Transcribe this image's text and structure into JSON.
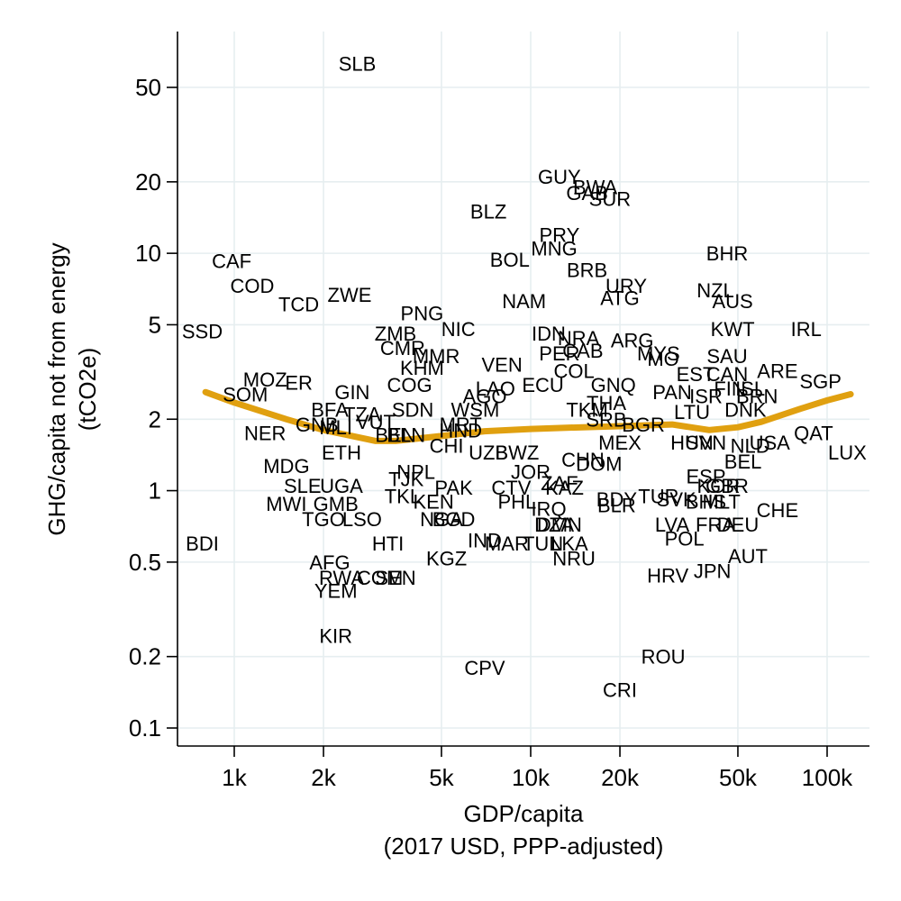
{
  "chart_data": {
    "type": "scatter",
    "xlabel": "GDP/capita",
    "xlabel_units": "(2017 USD, PPP-adjusted)",
    "ylabel": "GHG/capita not from energy",
    "ylabel_units": "(tCO2e)",
    "x_scale": "log",
    "y_scale": "log",
    "xlim": [
      700,
      130000
    ],
    "ylim": [
      0.085,
      78
    ],
    "grid": true,
    "line_color": "#e0a010",
    "x_ticks": [
      {
        "value": 1000,
        "label": "1k"
      },
      {
        "value": 2000,
        "label": "2k"
      },
      {
        "value": 5000,
        "label": "5k"
      },
      {
        "value": 10000,
        "label": "10k"
      },
      {
        "value": 20000,
        "label": "20k"
      },
      {
        "value": 50000,
        "label": "50k"
      },
      {
        "value": 100000,
        "label": "100k"
      }
    ],
    "y_ticks": [
      {
        "value": 0.1,
        "label": "0.1"
      },
      {
        "value": 0.2,
        "label": "0.2"
      },
      {
        "value": 0.5,
        "label": "0.5"
      },
      {
        "value": 1,
        "label": "1"
      },
      {
        "value": 2,
        "label": "2"
      },
      {
        "value": 5,
        "label": "5"
      },
      {
        "value": 10,
        "label": "10"
      },
      {
        "value": 20,
        "label": "20"
      },
      {
        "value": 50,
        "label": "50"
      }
    ],
    "trend": [
      {
        "x": 800,
        "y": 2.6
      },
      {
        "x": 1000,
        "y": 2.35
      },
      {
        "x": 1500,
        "y": 2.0
      },
      {
        "x": 2000,
        "y": 1.8
      },
      {
        "x": 2500,
        "y": 1.7
      },
      {
        "x": 3000,
        "y": 1.62
      },
      {
        "x": 3500,
        "y": 1.62
      },
      {
        "x": 5000,
        "y": 1.7
      },
      {
        "x": 7000,
        "y": 1.78
      },
      {
        "x": 10000,
        "y": 1.82
      },
      {
        "x": 15000,
        "y": 1.85
      },
      {
        "x": 20000,
        "y": 1.87
      },
      {
        "x": 30000,
        "y": 1.9
      },
      {
        "x": 40000,
        "y": 1.8
      },
      {
        "x": 50000,
        "y": 1.85
      },
      {
        "x": 60000,
        "y": 1.95
      },
      {
        "x": 80000,
        "y": 2.2
      },
      {
        "x": 100000,
        "y": 2.4
      },
      {
        "x": 120000,
        "y": 2.55
      }
    ],
    "points": [
      {
        "label": "SLB",
        "x": 2600,
        "y": 63
      },
      {
        "label": "GUY",
        "x": 12500,
        "y": 21
      },
      {
        "label": "BWA",
        "x": 16500,
        "y": 19
      },
      {
        "label": "GAB",
        "x": 15500,
        "y": 18
      },
      {
        "label": "SUR",
        "x": 18500,
        "y": 17
      },
      {
        "label": "BLZ",
        "x": 7200,
        "y": 15
      },
      {
        "label": "PRY",
        "x": 12500,
        "y": 12
      },
      {
        "label": "MNG",
        "x": 12000,
        "y": 10.5
      },
      {
        "label": "BOL",
        "x": 8500,
        "y": 9.4
      },
      {
        "label": "BRB",
        "x": 15500,
        "y": 8.5
      },
      {
        "label": "URY",
        "x": 21000,
        "y": 7.3
      },
      {
        "label": "ATG",
        "x": 20000,
        "y": 6.5
      },
      {
        "label": "NAM",
        "x": 9500,
        "y": 6.3
      },
      {
        "label": "BHR",
        "x": 46000,
        "y": 10
      },
      {
        "label": "NZL",
        "x": 42000,
        "y": 7
      },
      {
        "label": "AUS",
        "x": 48000,
        "y": 6.3
      },
      {
        "label": "KWT",
        "x": 48000,
        "y": 4.8
      },
      {
        "label": "IRL",
        "x": 85000,
        "y": 4.8
      },
      {
        "label": "SAU",
        "x": 46000,
        "y": 3.7
      },
      {
        "label": "ARE",
        "x": 68000,
        "y": 3.2
      },
      {
        "label": "SGP",
        "x": 95000,
        "y": 2.9
      },
      {
        "label": "CAN",
        "x": 46000,
        "y": 3.1
      },
      {
        "label": "EST",
        "x": 36000,
        "y": 3.1
      },
      {
        "label": "FIN",
        "x": 47000,
        "y": 2.7
      },
      {
        "label": "ISL",
        "x": 55000,
        "y": 2.7
      },
      {
        "label": "ISR",
        "x": 39000,
        "y": 2.5
      },
      {
        "label": "BRN",
        "x": 58000,
        "y": 2.5
      },
      {
        "label": "DNK",
        "x": 53000,
        "y": 2.2
      },
      {
        "label": "LTU",
        "x": 35000,
        "y": 2.15
      },
      {
        "label": "PAN",
        "x": 30000,
        "y": 2.6
      },
      {
        "label": "MYS",
        "x": 27000,
        "y": 3.8
      },
      {
        "label": "ARG",
        "x": 22000,
        "y": 4.3
      },
      {
        "label": "MO",
        "x": 28000,
        "y": 3.6
      },
      {
        "label": "IDN",
        "x": 11500,
        "y": 4.6
      },
      {
        "label": "NRA",
        "x": 14500,
        "y": 4.4
      },
      {
        "label": "PER",
        "x": 12500,
        "y": 3.8
      },
      {
        "label": "CAB",
        "x": 15000,
        "y": 3.9
      },
      {
        "label": "COL",
        "x": 14000,
        "y": 3.2
      },
      {
        "label": "GNQ",
        "x": 19000,
        "y": 2.8
      },
      {
        "label": "ECU",
        "x": 11000,
        "y": 2.8
      },
      {
        "label": "VEN",
        "x": 8000,
        "y": 3.4
      },
      {
        "label": "LAO",
        "x": 7600,
        "y": 2.7
      },
      {
        "label": "AGO",
        "x": 7000,
        "y": 2.5
      },
      {
        "label": "WSM",
        "x": 6500,
        "y": 2.2
      },
      {
        "label": "NIC",
        "x": 5700,
        "y": 4.8
      },
      {
        "label": "PNG",
        "x": 4300,
        "y": 5.6
      },
      {
        "label": "ZMB",
        "x": 3500,
        "y": 4.6
      },
      {
        "label": "CMR",
        "x": 3700,
        "y": 4.0
      },
      {
        "label": "MMR",
        "x": 4800,
        "y": 3.7
      },
      {
        "label": "KHM",
        "x": 4300,
        "y": 3.3
      },
      {
        "label": "COG",
        "x": 3900,
        "y": 2.8
      },
      {
        "label": "GIN",
        "x": 2500,
        "y": 2.6
      },
      {
        "label": "SDN",
        "x": 4000,
        "y": 2.2
      },
      {
        "label": "TZA",
        "x": 2700,
        "y": 2.1
      },
      {
        "label": "VUT",
        "x": 3000,
        "y": 1.95
      },
      {
        "label": "BFA",
        "x": 2100,
        "y": 2.2
      },
      {
        "label": "GNB",
        "x": 1900,
        "y": 1.9
      },
      {
        "label": "MLI",
        "x": 2200,
        "y": 1.85
      },
      {
        "label": "CAF",
        "x": 980,
        "y": 9.3
      },
      {
        "label": "COD",
        "x": 1150,
        "y": 7.3
      },
      {
        "label": "TCD",
        "x": 1650,
        "y": 6.1
      },
      {
        "label": "ZWE",
        "x": 2450,
        "y": 6.7
      },
      {
        "label": "SSD",
        "x": 780,
        "y": 4.7
      },
      {
        "label": "MOZ",
        "x": 1270,
        "y": 2.95
      },
      {
        "label": "ER",
        "x": 1650,
        "y": 2.85
      },
      {
        "label": "SOM",
        "x": 1090,
        "y": 2.55
      },
      {
        "label": "NER",
        "x": 1270,
        "y": 1.75
      },
      {
        "label": "MDG",
        "x": 1500,
        "y": 1.27
      },
      {
        "label": "ETH",
        "x": 2300,
        "y": 1.45
      },
      {
        "label": "SLE",
        "x": 1700,
        "y": 1.05
      },
      {
        "label": "UGA",
        "x": 2300,
        "y": 1.05
      },
      {
        "label": "MWI",
        "x": 1500,
        "y": 0.88
      },
      {
        "label": "GMB",
        "x": 2200,
        "y": 0.88
      },
      {
        "label": "TGO",
        "x": 2000,
        "y": 0.76
      },
      {
        "label": "LSO",
        "x": 2700,
        "y": 0.76
      },
      {
        "label": "BDI",
        "x": 780,
        "y": 0.6
      },
      {
        "label": "AFG",
        "x": 2100,
        "y": 0.5
      },
      {
        "label": "RWA",
        "x": 2300,
        "y": 0.43
      },
      {
        "label": "COM",
        "x": 3100,
        "y": 0.43
      },
      {
        "label": "SEN",
        "x": 3500,
        "y": 0.43
      },
      {
        "label": "YEM",
        "x": 2200,
        "y": 0.38
      },
      {
        "label": "KIR",
        "x": 2200,
        "y": 0.245
      },
      {
        "label": "HTI",
        "x": 3300,
        "y": 0.6
      },
      {
        "label": "KGZ",
        "x": 5200,
        "y": 0.52
      },
      {
        "label": "BEN",
        "x": 3500,
        "y": 1.72
      },
      {
        "label": "BLN",
        "x": 3800,
        "y": 1.72
      },
      {
        "label": "NPL",
        "x": 4100,
        "y": 1.2
      },
      {
        "label": "TJK",
        "x": 3800,
        "y": 1.12
      },
      {
        "label": "TKL",
        "x": 3700,
        "y": 0.95
      },
      {
        "label": "PAK",
        "x": 5500,
        "y": 1.03
      },
      {
        "label": "KEN",
        "x": 4700,
        "y": 0.9
      },
      {
        "label": "NGA",
        "x": 5000,
        "y": 0.76
      },
      {
        "label": "BGD",
        "x": 5500,
        "y": 0.76
      },
      {
        "label": "CHI",
        "x": 5200,
        "y": 1.55
      },
      {
        "label": "MRT",
        "x": 5800,
        "y": 1.9
      },
      {
        "label": "HND",
        "x": 5800,
        "y": 1.8
      },
      {
        "label": "UZB",
        "x": 7200,
        "y": 1.45
      },
      {
        "label": "BWZ",
        "x": 9000,
        "y": 1.45
      },
      {
        "label": "JOR",
        "x": 10000,
        "y": 1.2
      },
      {
        "label": "CTV",
        "x": 8600,
        "y": 1.03
      },
      {
        "label": "PHL",
        "x": 9000,
        "y": 0.9
      },
      {
        "label": "IND",
        "x": 7000,
        "y": 0.62
      },
      {
        "label": "MAR",
        "x": 8300,
        "y": 0.6
      },
      {
        "label": "TUN",
        "x": 11000,
        "y": 0.6
      },
      {
        "label": "LKA",
        "x": 13500,
        "y": 0.6
      },
      {
        "label": "NRU",
        "x": 14000,
        "y": 0.52
      },
      {
        "label": "DZA",
        "x": 12000,
        "y": 0.72
      },
      {
        "label": "DMN",
        "x": 12500,
        "y": 0.72
      },
      {
        "label": "IRQ",
        "x": 11500,
        "y": 0.84
      },
      {
        "label": "KAZ",
        "x": 13000,
        "y": 1.03
      },
      {
        "label": "ZAF",
        "x": 12500,
        "y": 1.08
      },
      {
        "label": "DOM",
        "x": 17000,
        "y": 1.3
      },
      {
        "label": "BDY",
        "x": 19500,
        "y": 0.92
      },
      {
        "label": "BLR",
        "x": 19500,
        "y": 0.87
      },
      {
        "label": "CHN",
        "x": 15000,
        "y": 1.35
      },
      {
        "label": "THA",
        "x": 18000,
        "y": 2.35
      },
      {
        "label": "TKM",
        "x": 15500,
        "y": 2.2
      },
      {
        "label": "SRB",
        "x": 18000,
        "y": 2.0
      },
      {
        "label": "MEX",
        "x": 20000,
        "y": 1.6
      },
      {
        "label": "BGR",
        "x": 24000,
        "y": 1.9
      },
      {
        "label": "TUR",
        "x": 27000,
        "y": 0.95
      },
      {
        "label": "SVK",
        "x": 31000,
        "y": 0.92
      },
      {
        "label": "SVN",
        "x": 39000,
        "y": 1.6
      },
      {
        "label": "HUN",
        "x": 35000,
        "y": 1.6
      },
      {
        "label": "ESP",
        "x": 39000,
        "y": 1.15
      },
      {
        "label": "KOR",
        "x": 43000,
        "y": 1.05
      },
      {
        "label": "GBR",
        "x": 46000,
        "y": 1.05
      },
      {
        "label": "BHS",
        "x": 39000,
        "y": 0.9
      },
      {
        "label": "MLT",
        "x": 44000,
        "y": 0.9
      },
      {
        "label": "LVA",
        "x": 30000,
        "y": 0.72
      },
      {
        "label": "FRA",
        "x": 42000,
        "y": 0.72
      },
      {
        "label": "DEU",
        "x": 50000,
        "y": 0.72
      },
      {
        "label": "POL",
        "x": 33000,
        "y": 0.63
      },
      {
        "label": "CHE",
        "x": 68000,
        "y": 0.83
      },
      {
        "label": "AUT",
        "x": 54000,
        "y": 0.53
      },
      {
        "label": "JPN",
        "x": 41000,
        "y": 0.46
      },
      {
        "label": "HRV",
        "x": 29000,
        "y": 0.44
      },
      {
        "label": "USA",
        "x": 64000,
        "y": 1.6
      },
      {
        "label": "BEL",
        "x": 52000,
        "y": 1.33
      },
      {
        "label": "NLD",
        "x": 55000,
        "y": 1.55
      },
      {
        "label": "QAT",
        "x": 90000,
        "y": 1.75
      },
      {
        "label": "LUX",
        "x": 117000,
        "y": 1.45
      },
      {
        "label": "ROU",
        "x": 28000,
        "y": 0.2
      },
      {
        "label": "CRI",
        "x": 20000,
        "y": 0.145
      },
      {
        "label": "CPV",
        "x": 7000,
        "y": 0.18
      }
    ]
  }
}
